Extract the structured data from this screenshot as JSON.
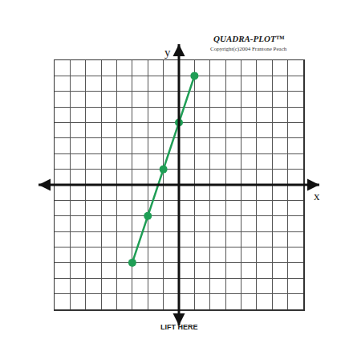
{
  "chart_data": {
    "type": "line",
    "brand": "QUADRA-PLOT™",
    "copyright": "Copyright(c)2004 Frantone Peach",
    "footer": "LIFT HERE",
    "xlabel": "x",
    "ylabel": "y",
    "x": [
      -3,
      -2,
      -1,
      0,
      1
    ],
    "values": [
      -5,
      -2,
      1,
      4,
      7
    ],
    "color": "#1f9e55",
    "marker": "circle",
    "xlim": [
      -8,
      8
    ],
    "ylim": [
      -8,
      8
    ],
    "xticks": [
      -8,
      -7,
      -6,
      -5,
      -4,
      -3,
      -2,
      -1,
      0,
      1,
      2,
      3,
      4,
      5,
      6,
      7,
      8
    ],
    "yticks": [
      -8,
      -7,
      -6,
      -5,
      -4,
      -3,
      -2,
      -1,
      0,
      1,
      2,
      3,
      4,
      5,
      6,
      7,
      8
    ],
    "grid": true,
    "tick_labels": false
  }
}
